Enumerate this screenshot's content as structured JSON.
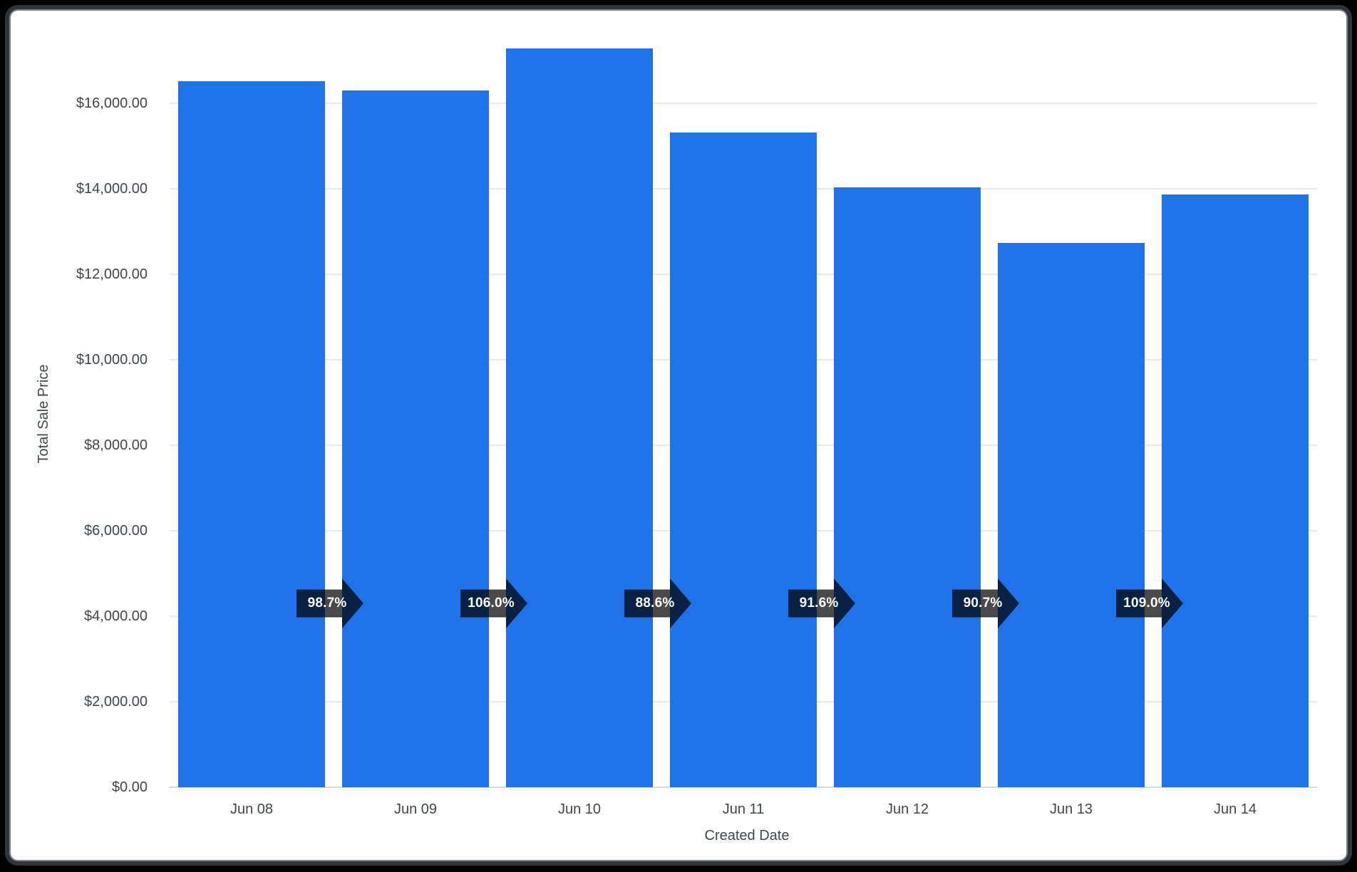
{
  "frame": {
    "outer_bg": "#000000",
    "ring_dark": "#2e3639",
    "ring_light": "#7e8589",
    "card_bg": "#ffffff"
  },
  "chart_data": {
    "type": "bar",
    "title": "",
    "xlabel": "Created Date",
    "ylabel": "Total Sale Price",
    "categories": [
      "Jun 08",
      "Jun 09",
      "Jun 10",
      "Jun 11",
      "Jun 12",
      "Jun 13",
      "Jun 14"
    ],
    "values": [
      16520,
      16300,
      17280,
      15320,
      14030,
      12730,
      13875
    ],
    "series_name": "Total Sale Price",
    "y_ticks": [
      "$0.00",
      "$2,000.00",
      "$4,000.00",
      "$6,000.00",
      "$8,000.00",
      "$10,000.00",
      "$12,000.00",
      "$14,000.00",
      "$16,000.00"
    ],
    "y_tick_values": [
      0,
      2000,
      4000,
      6000,
      8000,
      10000,
      12000,
      14000,
      16000
    ],
    "ylim": [
      0,
      17450
    ],
    "grid": true,
    "legend": false,
    "bar_color": "#1F72E8",
    "grid_color": "#e9e9e9",
    "baseline_color": "#d9d9d9",
    "axis_text_color": "#3e474e",
    "deltas": {
      "labels": [
        "98.7%",
        "106.0%",
        "88.6%",
        "91.6%",
        "90.7%",
        "109.0%"
      ],
      "shape": "right-arrow",
      "fill": "rgba(0,0,0,0.71)",
      "text_color": "#ffffff"
    }
  }
}
